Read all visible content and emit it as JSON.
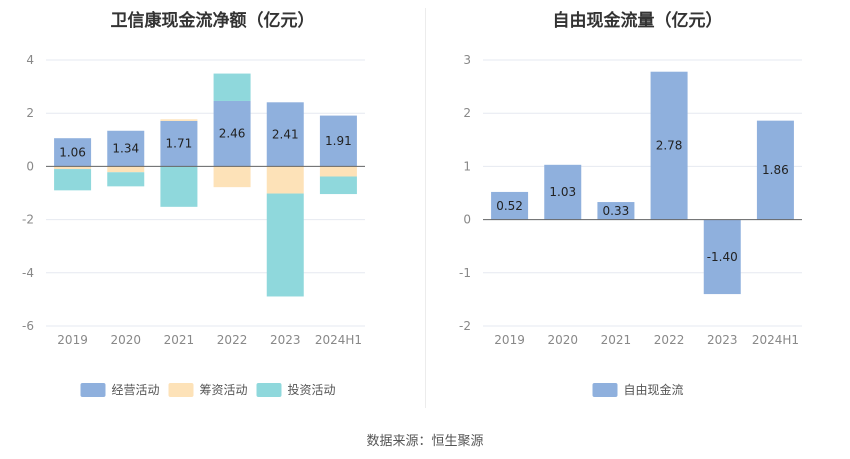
{
  "source": "数据来源：恒生聚源",
  "chart_data": [
    {
      "type": "bar",
      "stacked": true,
      "title": "卫信康现金流净额（亿元）",
      "categories": [
        "2019",
        "2020",
        "2021",
        "2022",
        "2023",
        "2024H1"
      ],
      "ylim": [
        -6,
        4
      ],
      "yticks": [
        -6,
        -4,
        -2,
        0,
        2,
        4
      ],
      "grid": true,
      "legend_position": "bottom",
      "series": [
        {
          "name": "经营活动",
          "color": "#8fb0dd",
          "values": [
            1.06,
            1.34,
            1.71,
            2.46,
            2.41,
            1.91
          ],
          "labeled": true
        },
        {
          "name": "筹资活动",
          "color": "#fde2b8",
          "values": [
            -0.1,
            -0.22,
            0.06,
            -0.78,
            -1.02,
            -0.38
          ],
          "labeled": false
        },
        {
          "name": "投资活动",
          "color": "#8fd8dc",
          "values": [
            -0.8,
            -0.53,
            -1.52,
            1.03,
            -3.87,
            -0.66
          ],
          "labeled": false
        }
      ],
      "data_labels": [
        "1.06",
        "1.34",
        "1.71",
        "2.46",
        "2.41",
        "1.91"
      ]
    },
    {
      "type": "bar",
      "title": "自由现金流量（亿元）",
      "categories": [
        "2019",
        "2020",
        "2021",
        "2022",
        "2023",
        "2024H1"
      ],
      "ylim": [
        -2,
        3
      ],
      "yticks": [
        -2,
        -1,
        0,
        1,
        2,
        3
      ],
      "grid": true,
      "legend_position": "bottom",
      "series": [
        {
          "name": "自由现金流",
          "color": "#8fb0dd",
          "values": [
            0.52,
            1.03,
            0.33,
            2.78,
            -1.4,
            1.86
          ],
          "labeled": true
        }
      ],
      "data_labels": [
        "0.52",
        "1.03",
        "0.33",
        "2.78",
        "-1.40",
        "1.86"
      ]
    }
  ]
}
